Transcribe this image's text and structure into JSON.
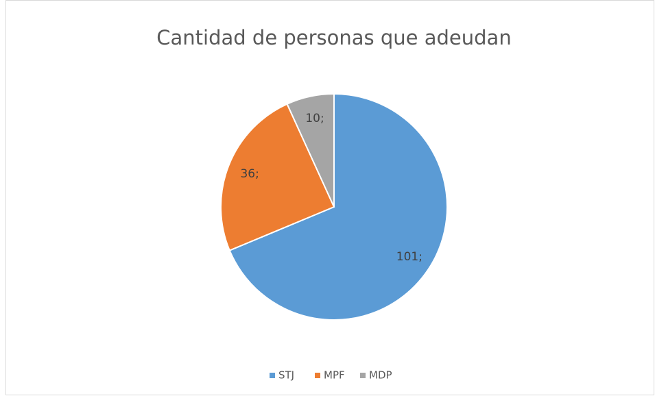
{
  "chart_data": {
    "type": "pie",
    "title": "Cantidad de personas que adeudan",
    "categories": [
      "STJ",
      "MPF",
      "MDP"
    ],
    "values": [
      101,
      36,
      10
    ],
    "value_labels": [
      "101;",
      "36;",
      "10;"
    ],
    "colors": [
      "#5b9bd5",
      "#ed7d31",
      "#a5a5a5"
    ],
    "legend": "bottom"
  }
}
